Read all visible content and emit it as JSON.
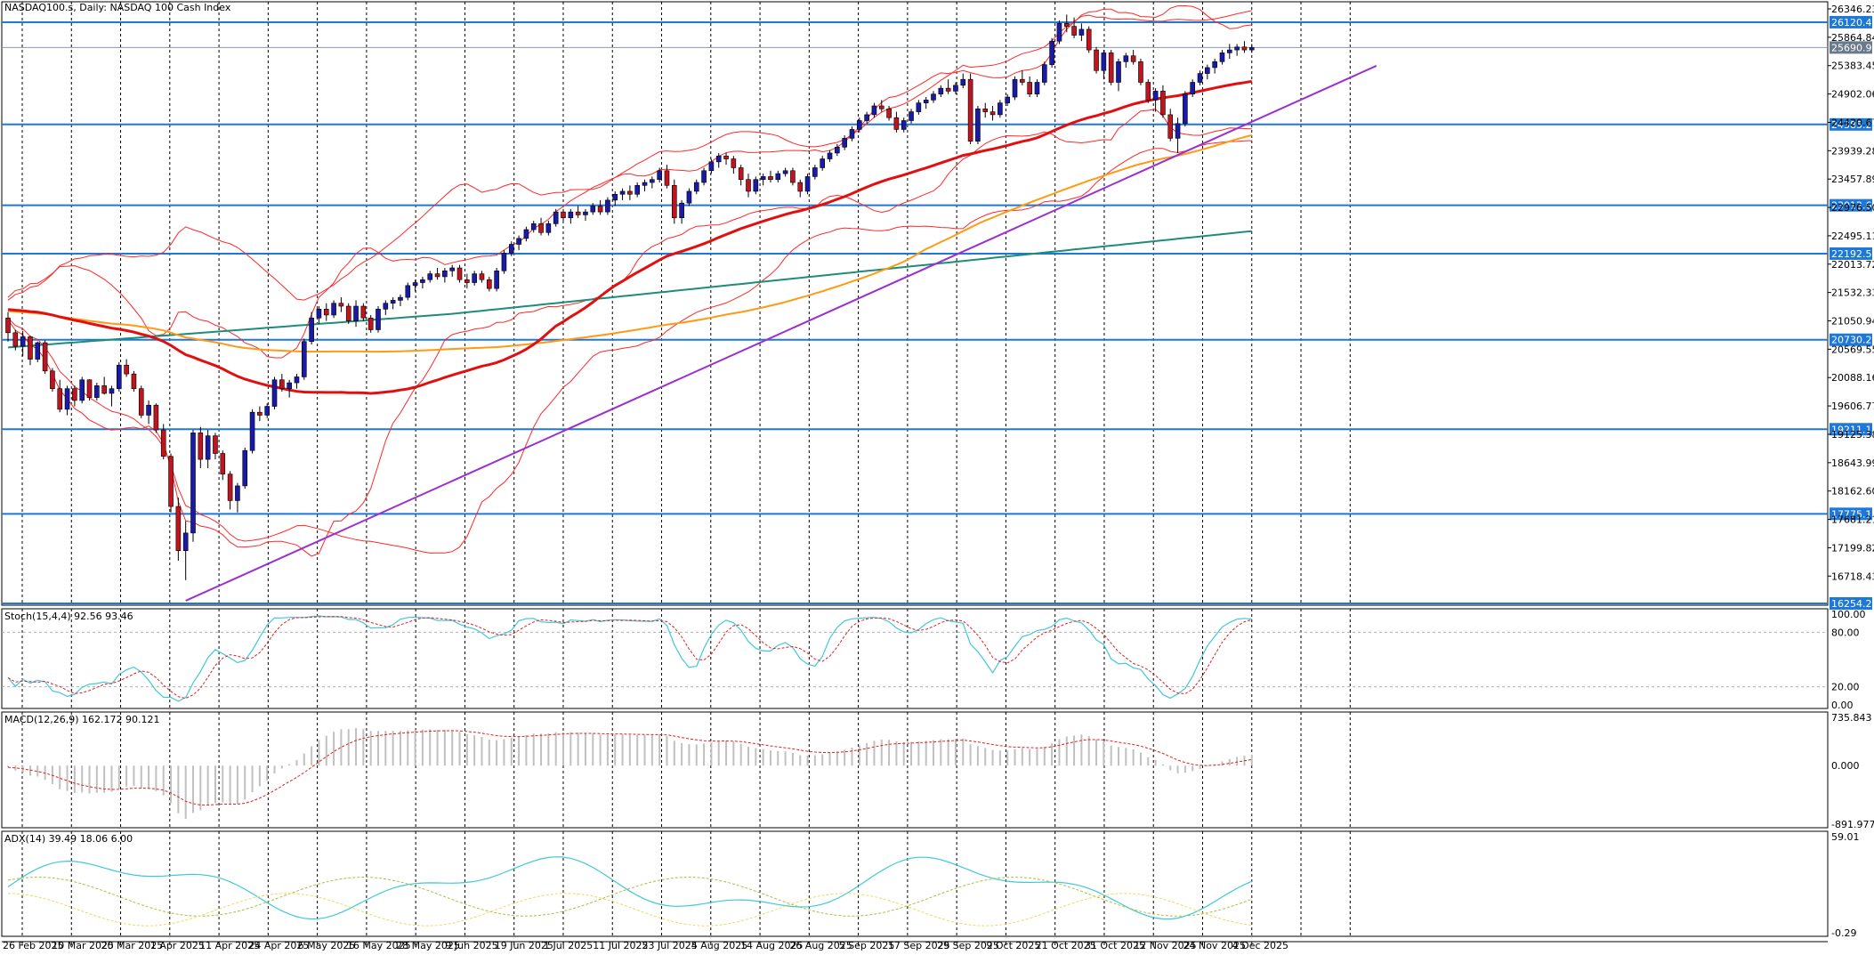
{
  "chart_data": {
    "type": "candlestick",
    "title": "NASDAQ100.s, Daily:  NASDAQ 100 Cash Index",
    "main_panel": {
      "ylim": [
        16254.28,
        26346.23
      ],
      "y_ticks": [
        26346.23,
        25864.84,
        25383.45,
        24902.06,
        24420.67,
        23939.28,
        23457.89,
        22976.5,
        22495.11,
        22013.72,
        21532.33,
        21050.94,
        20569.55,
        20088.16,
        19606.77,
        19125.38,
        18643.99,
        18162.6,
        17681.21,
        17199.82,
        16718.43
      ],
      "y_tick_labels": [
        "26346.23",
        "25864.84",
        "25383.45",
        "24902.06",
        "24420.67",
        "23939.28",
        "23457.89",
        "22976.50",
        "22495.11",
        "22013.72",
        "21532.33",
        "21050.94",
        "20569.55",
        "20088.16",
        "19606.77",
        "19125.38",
        "18643.99",
        "18162.60",
        "17681.21",
        "17199.82",
        "16718.43"
      ],
      "horizontal_levels": [
        {
          "label": "26120.48",
          "value": 26120.48
        },
        {
          "label": "24385.26",
          "value": 24385.26
        },
        {
          "label": "23012.60",
          "value": 23012.6
        },
        {
          "label": "22192.51",
          "value": 22192.51
        },
        {
          "label": "20730.21",
          "value": 20730.21
        },
        {
          "label": "19211.18",
          "value": 19211.18
        },
        {
          "label": "17775.18",
          "value": 17775.18
        },
        {
          "label": "16254.28",
          "value": 16254.28
        }
      ],
      "current_price": {
        "label": "25690.92",
        "value": 25690.92
      },
      "candles": [
        [
          21100,
          21200,
          20700,
          20850
        ],
        [
          20850,
          20900,
          20550,
          20620
        ],
        [
          20620,
          20880,
          20450,
          20780
        ],
        [
          20780,
          20800,
          20300,
          20400
        ],
        [
          20400,
          20700,
          20350,
          20680
        ],
        [
          20680,
          20720,
          20150,
          20200
        ],
        [
          20200,
          20250,
          19850,
          19900
        ],
        [
          19900,
          20050,
          19500,
          19550
        ],
        [
          19550,
          19950,
          19450,
          19900
        ],
        [
          19900,
          19950,
          19600,
          19700
        ],
        [
          19700,
          20100,
          19650,
          20050
        ],
        [
          20050,
          20060,
          19700,
          19750
        ],
        [
          19750,
          20000,
          19700,
          19950
        ],
        [
          19950,
          20100,
          19800,
          19820
        ],
        [
          19820,
          19950,
          19600,
          19900
        ],
        [
          19900,
          20350,
          19850,
          20300
        ],
        [
          20300,
          20400,
          20100,
          20150
        ],
        [
          20150,
          20200,
          19850,
          19900
        ],
        [
          19900,
          19950,
          19400,
          19450
        ],
        [
          19450,
          19700,
          19300,
          19620
        ],
        [
          19620,
          19650,
          19150,
          19200
        ],
        [
          19200,
          19300,
          18700,
          18750
        ],
        [
          18750,
          18800,
          17800,
          17900
        ],
        [
          17900,
          18050,
          16980,
          17150
        ],
        [
          17150,
          17650,
          16650,
          17450
        ],
        [
          17450,
          19200,
          17300,
          19150
        ],
        [
          19150,
          19250,
          18550,
          18700
        ],
        [
          18700,
          19200,
          18550,
          19100
        ],
        [
          19100,
          19150,
          18700,
          18800
        ],
        [
          18800,
          18850,
          18350,
          18450
        ],
        [
          18450,
          18500,
          17850,
          18000
        ],
        [
          18000,
          18300,
          17800,
          18250
        ],
        [
          18250,
          18900,
          18200,
          18850
        ],
        [
          18850,
          19550,
          18800,
          19500
        ],
        [
          19500,
          19600,
          19350,
          19450
        ],
        [
          19450,
          19650,
          19400,
          19600
        ],
        [
          19600,
          20100,
          19550,
          20050
        ],
        [
          20050,
          20150,
          19850,
          19900
        ],
        [
          19900,
          20050,
          19750,
          20000
        ],
        [
          20000,
          20150,
          19900,
          20100
        ],
        [
          20100,
          20750,
          20050,
          20700
        ],
        [
          20700,
          21200,
          20650,
          21100
        ],
        [
          21100,
          21300,
          21000,
          21250
        ],
        [
          21250,
          21350,
          21050,
          21150
        ],
        [
          21150,
          21400,
          21100,
          21350
        ],
        [
          21350,
          21450,
          21200,
          21300
        ],
        [
          21300,
          21350,
          21000,
          21050
        ],
        [
          21050,
          21400,
          20950,
          21300
        ],
        [
          21300,
          21350,
          21050,
          21100
        ],
        [
          21100,
          21150,
          20850,
          20900
        ],
        [
          20900,
          21300,
          20850,
          21250
        ],
        [
          21250,
          21400,
          21150,
          21350
        ],
        [
          21350,
          21450,
          21250,
          21400
        ],
        [
          21400,
          21500,
          21300,
          21450
        ],
        [
          21450,
          21700,
          21400,
          21650
        ],
        [
          21650,
          21750,
          21550,
          21700
        ],
        [
          21700,
          21800,
          21600,
          21750
        ],
        [
          21750,
          21900,
          21700,
          21850
        ],
        [
          21850,
          21950,
          21750,
          21800
        ],
        [
          21800,
          21950,
          21700,
          21900
        ],
        [
          21900,
          22000,
          21800,
          21950
        ],
        [
          21950,
          22000,
          21700,
          21750
        ],
        [
          21750,
          21850,
          21600,
          21700
        ],
        [
          21700,
          21900,
          21650,
          21850
        ],
        [
          21850,
          21900,
          21700,
          21750
        ],
        [
          21750,
          21800,
          21550,
          21600
        ],
        [
          21600,
          21950,
          21550,
          21900
        ],
        [
          21900,
          22250,
          21850,
          22200
        ],
        [
          22200,
          22400,
          22150,
          22350
        ],
        [
          22350,
          22500,
          22250,
          22450
        ],
        [
          22450,
          22650,
          22400,
          22600
        ],
        [
          22600,
          22750,
          22550,
          22700
        ],
        [
          22700,
          22800,
          22500,
          22550
        ],
        [
          22550,
          22750,
          22500,
          22700
        ],
        [
          22700,
          22950,
          22650,
          22900
        ],
        [
          22900,
          22950,
          22750,
          22800
        ],
        [
          22800,
          22950,
          22700,
          22900
        ],
        [
          22900,
          23000,
          22800,
          22850
        ],
        [
          22850,
          22950,
          22750,
          22900
        ],
        [
          22900,
          23050,
          22850,
          23000
        ],
        [
          23000,
          23100,
          22850,
          22900
        ],
        [
          22900,
          23150,
          22850,
          23100
        ],
        [
          23100,
          23250,
          23000,
          23200
        ],
        [
          23200,
          23300,
          23100,
          23250
        ],
        [
          23250,
          23350,
          23100,
          23200
        ],
        [
          23200,
          23400,
          23150,
          23350
        ],
        [
          23350,
          23450,
          23250,
          23400
        ],
        [
          23400,
          23500,
          23300,
          23450
        ],
        [
          23450,
          23650,
          23400,
          23600
        ],
        [
          23600,
          23700,
          23300,
          23350
        ],
        [
          23350,
          23450,
          22700,
          22800
        ],
        [
          22800,
          23100,
          22700,
          23050
        ],
        [
          23050,
          23300,
          23000,
          23250
        ],
        [
          23250,
          23450,
          23200,
          23400
        ],
        [
          23400,
          23650,
          23350,
          23600
        ],
        [
          23600,
          23800,
          23550,
          23750
        ],
        [
          23750,
          23900,
          23650,
          23850
        ],
        [
          23850,
          23900,
          23700,
          23800
        ],
        [
          23800,
          23850,
          23550,
          23650
        ],
        [
          23650,
          23700,
          23350,
          23450
        ],
        [
          23450,
          23550,
          23150,
          23250
        ],
        [
          23250,
          23500,
          23200,
          23450
        ],
        [
          23450,
          23550,
          23350,
          23500
        ],
        [
          23500,
          23600,
          23400,
          23450
        ],
        [
          23450,
          23600,
          23400,
          23550
        ],
        [
          23550,
          23650,
          23500,
          23600
        ],
        [
          23600,
          23650,
          23350,
          23400
        ],
        [
          23400,
          23450,
          23150,
          23250
        ],
        [
          23250,
          23550,
          23200,
          23500
        ],
        [
          23500,
          23700,
          23450,
          23650
        ],
        [
          23650,
          23850,
          23600,
          23800
        ],
        [
          23800,
          23950,
          23750,
          23900
        ],
        [
          23900,
          24050,
          23850,
          24000
        ],
        [
          24000,
          24200,
          23950,
          24150
        ],
        [
          24150,
          24350,
          24100,
          24300
        ],
        [
          24300,
          24500,
          24250,
          24450
        ],
        [
          24450,
          24600,
          24400,
          24550
        ],
        [
          24550,
          24750,
          24500,
          24700
        ],
        [
          24700,
          24800,
          24600,
          24650
        ],
        [
          24650,
          24700,
          24450,
          24500
        ],
        [
          24500,
          24600,
          24250,
          24300
        ],
        [
          24300,
          24500,
          24250,
          24450
        ],
        [
          24450,
          24650,
          24400,
          24600
        ],
        [
          24600,
          24800,
          24550,
          24750
        ],
        [
          24750,
          24850,
          24650,
          24800
        ],
        [
          24800,
          24950,
          24750,
          24900
        ],
        [
          24900,
          25050,
          24850,
          25000
        ],
        [
          25000,
          25150,
          24900,
          24950
        ],
        [
          24950,
          25100,
          24900,
          25050
        ],
        [
          25050,
          25250,
          25000,
          25150
        ],
        [
          25150,
          25250,
          24050,
          24100
        ],
        [
          24100,
          24700,
          24050,
          24650
        ],
        [
          24650,
          24750,
          24500,
          24600
        ],
        [
          24600,
          24700,
          24450,
          24550
        ],
        [
          24550,
          24800,
          24500,
          24750
        ],
        [
          24750,
          24900,
          24700,
          24850
        ],
        [
          24850,
          25200,
          24800,
          25150
        ],
        [
          25150,
          25300,
          25050,
          25100
        ],
        [
          25100,
          25200,
          24850,
          24900
        ],
        [
          24900,
          25150,
          24850,
          25100
        ],
        [
          25100,
          25450,
          25050,
          25400
        ],
        [
          25400,
          25850,
          25350,
          25800
        ],
        [
          25800,
          26150,
          25750,
          26100
        ],
        [
          26100,
          26250,
          25950,
          26050
        ],
        [
          26050,
          26200,
          25850,
          25900
        ],
        [
          25900,
          26100,
          25800,
          26000
        ],
        [
          26000,
          26050,
          25600,
          25650
        ],
        [
          25650,
          25700,
          25250,
          25300
        ],
        [
          25300,
          25650,
          25150,
          25600
        ],
        [
          25600,
          25650,
          25050,
          25100
        ],
        [
          25100,
          25500,
          24950,
          25450
        ],
        [
          25450,
          25600,
          25350,
          25550
        ],
        [
          25550,
          25650,
          25400,
          25450
        ],
        [
          25450,
          25500,
          25050,
          25100
        ],
        [
          25100,
          25150,
          24750,
          24800
        ],
        [
          24800,
          25000,
          24600,
          24950
        ],
        [
          24950,
          25050,
          24500,
          24550
        ],
        [
          24550,
          24650,
          24100,
          24150
        ],
        [
          24150,
          24500,
          23900,
          24400
        ],
        [
          24400,
          24950,
          24350,
          24900
        ],
        [
          24900,
          25150,
          24850,
          25100
        ],
        [
          25100,
          25300,
          25050,
          25250
        ],
        [
          25250,
          25400,
          25150,
          25350
        ],
        [
          25350,
          25500,
          25250,
          25450
        ],
        [
          25450,
          25650,
          25400,
          25600
        ],
        [
          25600,
          25750,
          25500,
          25650
        ],
        [
          25650,
          25750,
          25550,
          25700
        ],
        [
          25700,
          25800,
          25600,
          25650
        ],
        [
          25650,
          25750,
          25600,
          25690
        ]
      ]
    },
    "x_labels": [
      "26 Feb 2025",
      "10 Mar 2025",
      "20 Mar 2025",
      "1 Apr 2025",
      "11 Apr 2025",
      "24 Apr 2025",
      "6 May 2025",
      "16 May 2025",
      "28 May 2025",
      "9 Jun 2025",
      "19 Jun 2025",
      "1 Jul 2025",
      "11 Jul 2025",
      "23 Jul 2025",
      "4 Aug 2025",
      "14 Aug 2025",
      "26 Aug 2025",
      "5 Sep 2025",
      "17 Sep 2025",
      "29 Sep 2025",
      "9 Oct 2025",
      "21 Oct 2025",
      "31 Oct 2025",
      "12 Nov 2025",
      "24 Nov 2025",
      "4 Dec 2025"
    ],
    "stoch_panel": {
      "title": "Stoch(15,4,4) 92.56 93.46",
      "y_tick_labels": [
        "100.00",
        "80.00",
        "20.00",
        "0.00"
      ],
      "ylim": [
        0,
        100
      ]
    },
    "macd_panel": {
      "title": "MACD(12,26,9) 162.172 90.121",
      "y_tick_labels": [
        "735.843",
        "0.000",
        "-891.977"
      ],
      "ylim": [
        -891.977,
        735.843
      ]
    },
    "adx_panel": {
      "title": "ADX(14) 39.49 18.06 6.00",
      "y_tick_labels": [
        "59.01",
        "-0.29"
      ],
      "ylim": [
        -0.29,
        59.01
      ]
    },
    "colors": {
      "bull_candle": "#1a1aa8",
      "bear_candle": "#c0141e",
      "level_line": "#1e78d8",
      "bollinger": "#ff2828",
      "ma_fast": "#e01010",
      "ma_mid": "#ff9a14",
      "ma_slow": "#1e8c78",
      "trendline": "#9b30d0",
      "stoch_main": "#40c8d8",
      "stoch_signal": "#e02020",
      "macd_hist": "#c0c0c0",
      "adx": "#40c8d8",
      "di_plus": "#a8c040",
      "di_minus": "#f0d860"
    }
  }
}
